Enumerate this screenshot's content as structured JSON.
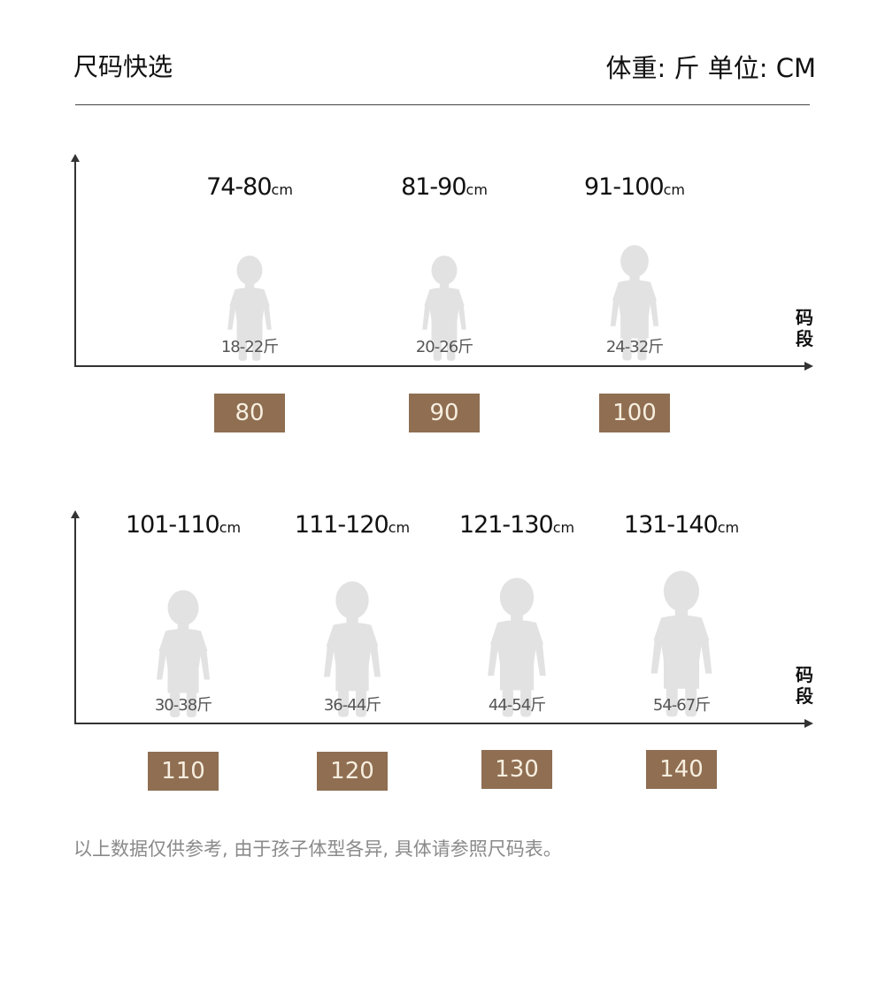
{
  "header": {
    "title": "尺码快选",
    "units": "体重: 斤  单位: CM"
  },
  "axis_label": "码段",
  "colors": {
    "box": "#8f6e52",
    "box_text": "#f7eedf",
    "figure": "#e2e2e2"
  },
  "rows": [
    {
      "items": [
        {
          "height": "74-80",
          "unit": "cm",
          "weight": "18-22斤",
          "size": "80"
        },
        {
          "height": "81-90",
          "unit": "cm",
          "weight": "20-26斤",
          "size": "90"
        },
        {
          "height": "91-100",
          "unit": "cm",
          "weight": "24-32斤",
          "size": "100"
        }
      ]
    },
    {
      "items": [
        {
          "height": "101-110",
          "unit": "cm",
          "weight": "30-38斤",
          "size": "110"
        },
        {
          "height": "111-120",
          "unit": "cm",
          "weight": "36-44斤",
          "size": "120"
        },
        {
          "height": "121-130",
          "unit": "cm",
          "weight": "44-54斤",
          "size": "130"
        },
        {
          "height": "131-140",
          "unit": "cm",
          "weight": "54-67斤",
          "size": "140"
        }
      ]
    }
  ],
  "footer": "以上数据仅供参考, 由于孩子体型各异, 具体请参照尺码表。"
}
